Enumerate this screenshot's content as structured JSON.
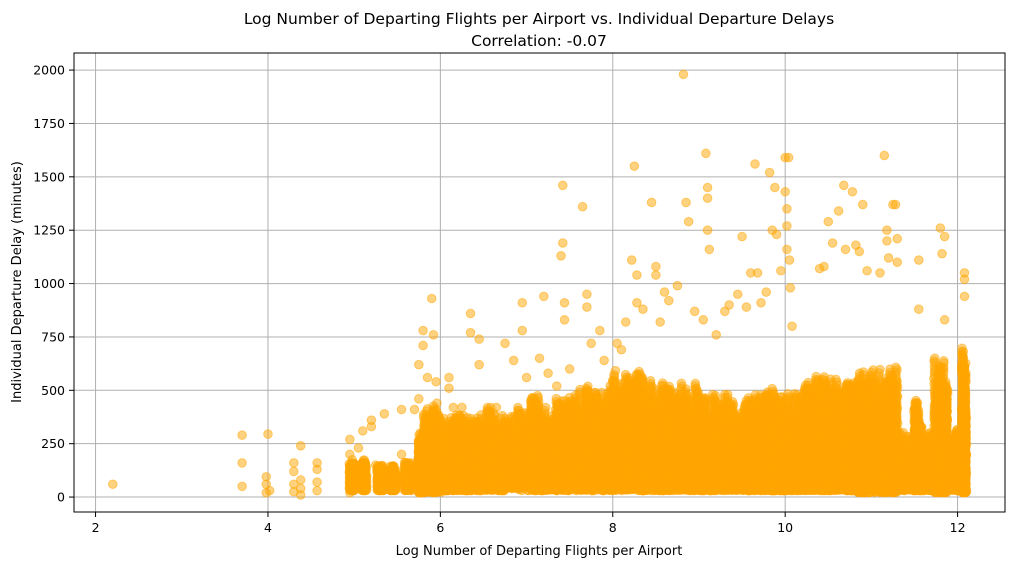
{
  "chart_data": {
    "type": "scatter",
    "title": "Log Number of Departing Flights per Airport vs. Individual Departure Delays",
    "subtitle": "Correlation: -0.07",
    "xlabel": "Log Number of Departing Flights per Airport",
    "ylabel": "Individual Departure Delay (minutes)",
    "xlim": [
      1.75,
      12.55
    ],
    "ylim": [
      -70,
      2080
    ],
    "xticks": [
      "2",
      "4",
      "6",
      "8",
      "10",
      "12"
    ],
    "xtick_values": [
      2,
      4,
      6,
      8,
      10,
      12
    ],
    "yticks": [
      "0",
      "250",
      "500",
      "750",
      "1000",
      "1250",
      "1500",
      "1750",
      "2000"
    ],
    "ytick_values": [
      0,
      250,
      500,
      750,
      1000,
      1250,
      1500,
      1750,
      2000
    ],
    "grid": true,
    "marker_color": "#FFA500",
    "marker_alpha": 0.5,
    "series": [
      {
        "points": [
          [
            2.2,
            60
          ],
          [
            3.7,
            290
          ],
          [
            3.7,
            160
          ],
          [
            3.7,
            50
          ],
          [
            3.98,
            95
          ],
          [
            3.98,
            20
          ],
          [
            3.98,
            60
          ],
          [
            4.0,
            295
          ],
          [
            4.02,
            30
          ],
          [
            4.3,
            160
          ],
          [
            4.3,
            120
          ],
          [
            4.3,
            60
          ],
          [
            4.3,
            25
          ],
          [
            4.38,
            240
          ],
          [
            4.38,
            80
          ],
          [
            4.38,
            40
          ],
          [
            4.38,
            10
          ],
          [
            4.57,
            160
          ],
          [
            4.57,
            130
          ],
          [
            4.57,
            70
          ],
          [
            4.57,
            30
          ],
          [
            4.95,
            270
          ],
          [
            4.95,
            200
          ],
          [
            4.95,
            130
          ],
          [
            4.95,
            60
          ],
          [
            4.95,
            20
          ],
          [
            5.05,
            230
          ],
          [
            5.05,
            150
          ],
          [
            5.1,
            310
          ],
          [
            5.1,
            90
          ],
          [
            5.2,
            330
          ],
          [
            5.2,
            360
          ],
          [
            5.25,
            150
          ],
          [
            5.3,
            110
          ],
          [
            5.35,
            390
          ],
          [
            5.45,
            140
          ],
          [
            5.55,
            410
          ],
          [
            5.55,
            200
          ],
          [
            5.55,
            120
          ],
          [
            5.7,
            410
          ],
          [
            5.75,
            460
          ],
          [
            5.75,
            620
          ],
          [
            5.8,
            710
          ],
          [
            5.8,
            780
          ],
          [
            5.85,
            560
          ],
          [
            5.9,
            930
          ],
          [
            5.92,
            760
          ],
          [
            5.95,
            540
          ],
          [
            5.95,
            410
          ],
          [
            5.96,
            440
          ],
          [
            5.99,
            370
          ],
          [
            6.1,
            560
          ],
          [
            6.1,
            510
          ],
          [
            6.15,
            420
          ],
          [
            6.25,
            420
          ],
          [
            6.35,
            860
          ],
          [
            6.35,
            770
          ],
          [
            6.45,
            740
          ],
          [
            6.45,
            620
          ],
          [
            6.55,
            400
          ],
          [
            6.65,
            420
          ],
          [
            6.75,
            720
          ],
          [
            6.85,
            640
          ],
          [
            6.95,
            910
          ],
          [
            6.95,
            780
          ],
          [
            7.0,
            560
          ],
          [
            7.15,
            650
          ],
          [
            7.2,
            940
          ],
          [
            7.25,
            580
          ],
          [
            7.35,
            520
          ],
          [
            7.4,
            1130
          ],
          [
            7.42,
            1190
          ],
          [
            7.42,
            1460
          ],
          [
            7.44,
            830
          ],
          [
            7.44,
            910
          ],
          [
            7.5,
            600
          ],
          [
            7.65,
            1360
          ],
          [
            7.7,
            950
          ],
          [
            7.7,
            890
          ],
          [
            7.75,
            720
          ],
          [
            7.85,
            780
          ],
          [
            7.9,
            640
          ],
          [
            8.0,
            540
          ],
          [
            8.05,
            720
          ],
          [
            8.1,
            690
          ],
          [
            8.15,
            820
          ],
          [
            8.22,
            1110
          ],
          [
            8.25,
            1550
          ],
          [
            8.28,
            910
          ],
          [
            8.28,
            1040
          ],
          [
            8.35,
            880
          ],
          [
            8.45,
            1380
          ],
          [
            8.5,
            1040
          ],
          [
            8.5,
            1080
          ],
          [
            8.55,
            820
          ],
          [
            8.6,
            960
          ],
          [
            8.65,
            920
          ],
          [
            8.75,
            990
          ],
          [
            8.82,
            1980
          ],
          [
            8.85,
            1380
          ],
          [
            8.88,
            1290
          ],
          [
            8.95,
            870
          ],
          [
            9.05,
            830
          ],
          [
            9.08,
            1610
          ],
          [
            9.1,
            1400
          ],
          [
            9.1,
            1450
          ],
          [
            9.1,
            1250
          ],
          [
            9.12,
            1160
          ],
          [
            9.2,
            760
          ],
          [
            9.3,
            870
          ],
          [
            9.35,
            900
          ],
          [
            9.45,
            950
          ],
          [
            9.5,
            1220
          ],
          [
            9.55,
            890
          ],
          [
            9.6,
            1050
          ],
          [
            9.65,
            1560
          ],
          [
            9.68,
            1050
          ],
          [
            9.72,
            910
          ],
          [
            9.78,
            960
          ],
          [
            9.82,
            1520
          ],
          [
            9.85,
            1250
          ],
          [
            9.88,
            1450
          ],
          [
            9.9,
            1230
          ],
          [
            9.95,
            1060
          ],
          [
            10.0,
            1590
          ],
          [
            10.0,
            1430
          ],
          [
            10.02,
            1350
          ],
          [
            10.02,
            1270
          ],
          [
            10.02,
            1160
          ],
          [
            10.04,
            1590
          ],
          [
            10.05,
            1110
          ],
          [
            10.06,
            980
          ],
          [
            10.08,
            800
          ],
          [
            10.4,
            1070
          ],
          [
            10.45,
            1080
          ],
          [
            10.5,
            1290
          ],
          [
            10.55,
            1190
          ],
          [
            10.62,
            1340
          ],
          [
            10.68,
            1460
          ],
          [
            10.7,
            1160
          ],
          [
            10.78,
            1430
          ],
          [
            10.82,
            1180
          ],
          [
            10.86,
            1150
          ],
          [
            10.9,
            1370
          ],
          [
            10.95,
            1060
          ],
          [
            11.1,
            1050
          ],
          [
            11.15,
            1600
          ],
          [
            11.18,
            1250
          ],
          [
            11.18,
            1200
          ],
          [
            11.2,
            1120
          ],
          [
            11.25,
            1370
          ],
          [
            11.28,
            1370
          ],
          [
            11.3,
            1210
          ],
          [
            11.3,
            1100
          ],
          [
            11.55,
            1110
          ],
          [
            11.55,
            880
          ],
          [
            11.8,
            1260
          ],
          [
            11.85,
            1220
          ],
          [
            11.85,
            830
          ],
          [
            11.82,
            1140
          ],
          [
            12.08,
            1050
          ],
          [
            12.08,
            1020
          ],
          [
            12.08,
            940
          ]
        ],
        "columns": [
          [
            4.95,
            5.0,
            30,
            160
          ],
          [
            5.08,
            5.14,
            30,
            160
          ],
          [
            5.27,
            5.34,
            30,
            140
          ],
          [
            5.42,
            5.49,
            30,
            140
          ],
          [
            5.58,
            5.66,
            30,
            160
          ],
          [
            5.75,
            5.8,
            20,
            290
          ],
          [
            5.8,
            6.02,
            20,
            430
          ],
          [
            6.0,
            12.0,
            30,
            300
          ],
          [
            6.02,
            6.5,
            30,
            380
          ],
          [
            6.5,
            7.0,
            40,
            420
          ],
          [
            7.0,
            7.6,
            40,
            470
          ],
          [
            7.6,
            8.3,
            40,
            520
          ],
          [
            8.0,
            8.35,
            40,
            580
          ],
          [
            8.35,
            9.0,
            40,
            540
          ],
          [
            9.0,
            9.8,
            40,
            480
          ],
          [
            9.8,
            10.2,
            30,
            500
          ],
          [
            10.2,
            10.8,
            30,
            560
          ],
          [
            10.8,
            11.3,
            20,
            600
          ],
          [
            11.5,
            11.58,
            30,
            450
          ],
          [
            11.72,
            11.9,
            20,
            650
          ],
          [
            12.05,
            12.1,
            20,
            700
          ]
        ]
      }
    ]
  }
}
